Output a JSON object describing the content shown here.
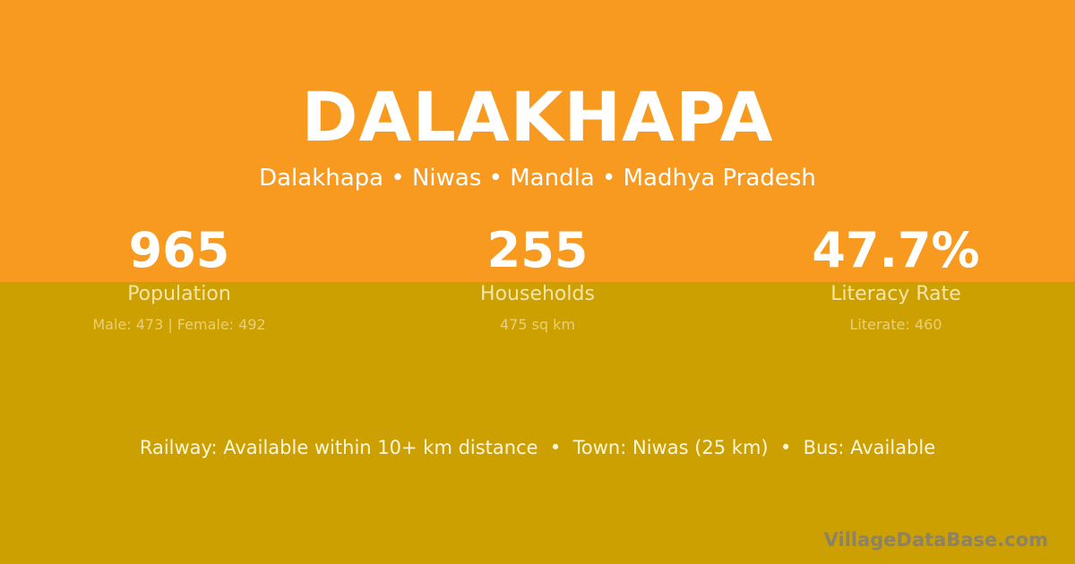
{
  "colors": {
    "top": "#F89A20",
    "bottom": "#CBA000"
  },
  "title": "DALAKHAPA",
  "subtitle": "Dalakhapa • Niwas • Mandla • Madhya Pradesh",
  "stats": [
    {
      "value": "965",
      "label": "Population",
      "sub": "Male: 473 | Female: 492"
    },
    {
      "value": "255",
      "label": "Households",
      "sub": "475 sq km"
    },
    {
      "value": "47.7%",
      "label": "Literacy Rate",
      "sub": "Literate: 460"
    }
  ],
  "facts": "Railway: Available within 10+ km distance  •  Town: Niwas (25 km)  •  Bus: Available",
  "brand": "VillageDataBase.com"
}
